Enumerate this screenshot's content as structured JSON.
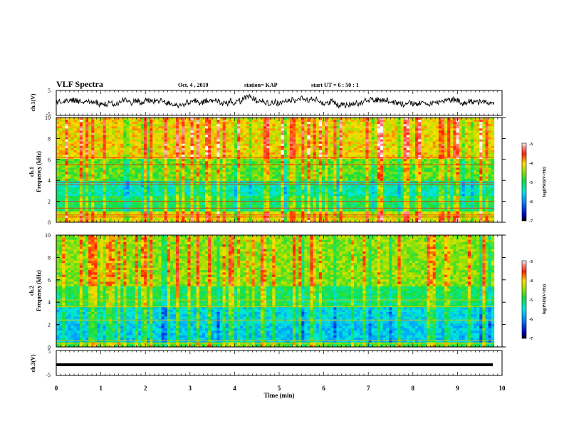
{
  "header": {
    "title": "VLF Spectra",
    "date": "Oct. 4 , 2019",
    "station": "station= KAP",
    "start": "start  UT =  6 : 50 : 1"
  },
  "chart_data": {
    "type": "heatmap",
    "x_axis": {
      "label": "Time (min)",
      "range": [
        0,
        10
      ],
      "ticks": [
        "0",
        "1",
        "2",
        "3",
        "4",
        "5",
        "6",
        "7",
        "8",
        "9",
        "10"
      ],
      "data_end": 9.82
    },
    "panels": [
      {
        "type": "line",
        "ylabel": "ch.1(V)",
        "yrange": [
          -5,
          5
        ],
        "yticks": [
          "5",
          "-5"
        ],
        "description_level": 0.5
      },
      {
        "type": "heatmap",
        "ylabel_top": "ch.1",
        "ylabel": "Frequency (kHz)",
        "yrange": [
          0,
          10
        ],
        "yticks": [
          "0",
          "2",
          "4",
          "6",
          "8",
          "10"
        ],
        "colorbar": {
          "label": "log(PSD)(V²/Hz)",
          "range": [
            -7,
            -3
          ],
          "ticks": [
            "-3",
            "-4",
            "-5",
            "-6",
            "-7"
          ]
        }
      },
      {
        "type": "heatmap",
        "ylabel_top": "ch.2",
        "ylabel": "Frequency (kHz)",
        "yrange": [
          0,
          10
        ],
        "yticks": [
          "0",
          "2",
          "4",
          "6",
          "8",
          "10"
        ],
        "colorbar": {
          "label": "log(PSD)(V²/Hz)",
          "range": [
            -7,
            -3
          ],
          "ticks": [
            "-3",
            "-4",
            "-5",
            "-6",
            "-7"
          ]
        }
      },
      {
        "type": "line",
        "ylabel": "ch.3(V)",
        "yrange": [
          -5,
          5
        ],
        "yticks": [
          "5",
          "-5"
        ],
        "constant_level": 0
      }
    ]
  }
}
